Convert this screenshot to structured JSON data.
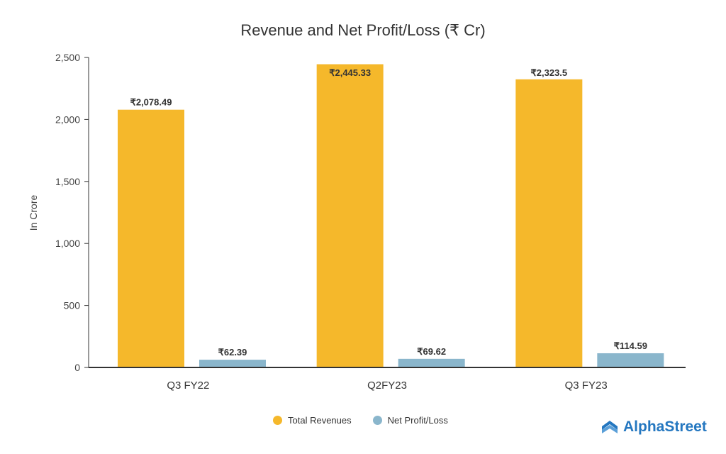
{
  "chart_data": {
    "type": "bar",
    "title": "Revenue and Net Profit/Loss (₹ Cr)",
    "xlabel": "",
    "ylabel": "In Crore",
    "ylim": [
      0,
      2500
    ],
    "yticks": [
      "0",
      "500",
      "1,000",
      "1,500",
      "2,000",
      "2,500"
    ],
    "categories": [
      "Q3 FY22",
      "Q2FY23",
      "Q3 FY23"
    ],
    "series": [
      {
        "name": "Total Revenues",
        "color": "#F5B82B",
        "values": [
          2078.49,
          2445.33,
          2323.5
        ],
        "labels": [
          "₹2,078.49",
          "₹2,445.33",
          "₹2,323.5"
        ]
      },
      {
        "name": "Net Profit/Loss",
        "color": "#8AB6CC",
        "values": [
          62.39,
          69.62,
          114.59
        ],
        "labels": [
          "₹62.39",
          "₹69.62",
          "₹114.59"
        ]
      }
    ],
    "legend": "bottom-center",
    "grid": false
  },
  "brand": {
    "name": "AlphaStreet",
    "color": "#2477C0"
  }
}
